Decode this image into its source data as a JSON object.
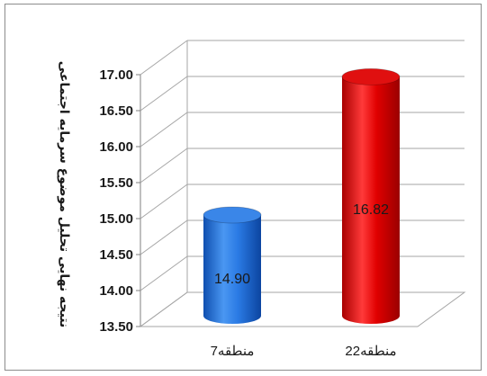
{
  "chart_data": {
    "type": "bar",
    "style": "3d-cylinder",
    "categories": [
      "منطقه7",
      "منطقه22"
    ],
    "values": [
      14.9,
      16.82
    ],
    "value_labels": [
      "14.90",
      "16.82"
    ],
    "bar_colors": [
      "#1f6fd6",
      "#d60000"
    ],
    "ylabel": "نتیجه نهایی تحلیل موضوع سرمایه اجتماعی",
    "ylim": [
      13.5,
      17.0
    ],
    "yticks": [
      "13.50",
      "14.00",
      "14.50",
      "15.00",
      "15.50",
      "16.00",
      "16.50",
      "17.00"
    ],
    "grid": true,
    "legend": "none"
  }
}
